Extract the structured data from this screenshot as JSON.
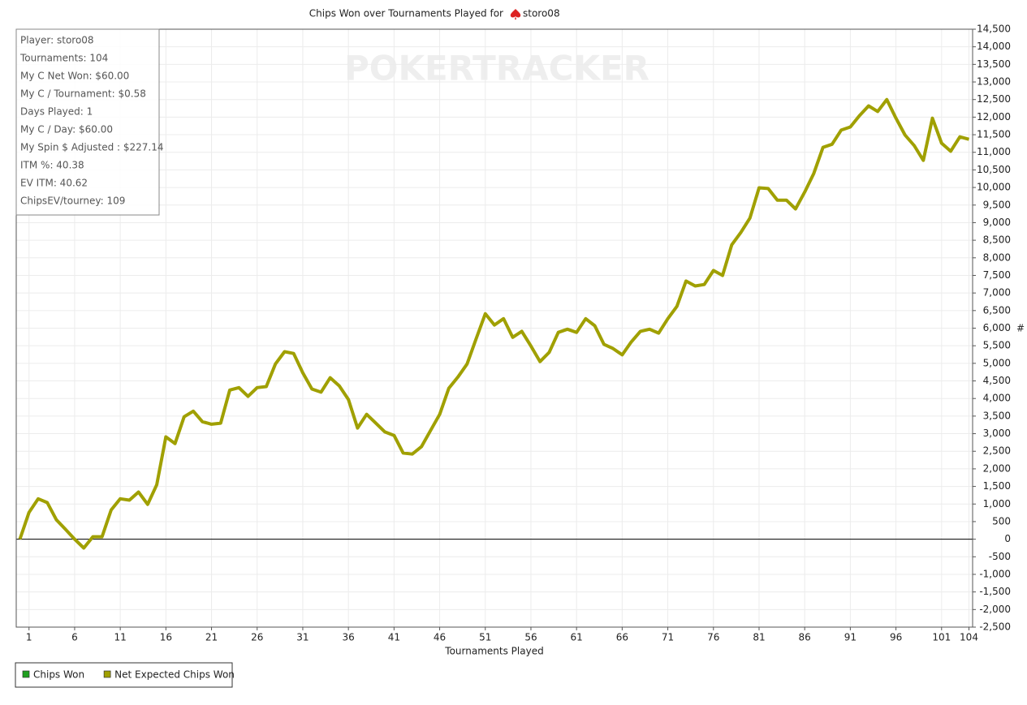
{
  "chart_data": {
    "type": "line",
    "title": "Chips Won over Tournaments Played for",
    "player": "storo08",
    "watermark": "POKERTRACKER",
    "x_label": "Tournaments Played",
    "y_label": "#",
    "stats": [
      "Player: storo08",
      "Tournaments: 104",
      "My C Net Won: $60.00",
      "My C / Tournament: $0.58",
      "Days Played: 1",
      "My C / Day: $60.00",
      "My Spin $ Adjusted : $227.14",
      "ITM %: 40.38",
      "EV ITM: 40.62",
      "ChipsEV/tourney: 109"
    ],
    "x": [
      0,
      1,
      2,
      3,
      4,
      5,
      6,
      7,
      8,
      9,
      10,
      11,
      12,
      13,
      14,
      15,
      16,
      17,
      18,
      19,
      20,
      21,
      22,
      23,
      24,
      25,
      26,
      27,
      28,
      29,
      30,
      31,
      32,
      33,
      34,
      35,
      36,
      37,
      38,
      39,
      40,
      41,
      42,
      43,
      44,
      45,
      46,
      47,
      48,
      49,
      50,
      51,
      52,
      53,
      54,
      55,
      56,
      57,
      58,
      59,
      60,
      61,
      62,
      63,
      64,
      65,
      66,
      67,
      68,
      69,
      70,
      71,
      72,
      73,
      74,
      75,
      76,
      77,
      78,
      79,
      80,
      81,
      82,
      83,
      84,
      85,
      86,
      87,
      88,
      89,
      90,
      91,
      92,
      93,
      94,
      95,
      96,
      97,
      98,
      99,
      100,
      101,
      102,
      103,
      104
    ],
    "series": [
      {
        "name": "Chips Won",
        "color": "#1fa01f"
      },
      {
        "name": "Net Expected Chips Won",
        "color": "#a0a000",
        "values": [
          0,
          760,
          1150,
          1040,
          550,
          280,
          0,
          -250,
          70,
          70,
          830,
          1150,
          1110,
          1340,
          990,
          1550,
          2910,
          2720,
          3480,
          3640,
          3340,
          3270,
          3300,
          4240,
          4310,
          4060,
          4310,
          4340,
          4980,
          5330,
          5280,
          4730,
          4270,
          4180,
          4590,
          4360,
          3970,
          3160,
          3550,
          3300,
          3050,
          2950,
          2450,
          2420,
          2630,
          3090,
          3550,
          4290,
          4610,
          4980,
          5700,
          6410,
          6090,
          6270,
          5740,
          5910,
          5490,
          5050,
          5310,
          5880,
          5970,
          5880,
          6270,
          6070,
          5540,
          5420,
          5240,
          5610,
          5910,
          5970,
          5860,
          6270,
          6620,
          7340,
          7200,
          7240,
          7640,
          7500,
          8370,
          8720,
          9130,
          9990,
          9970,
          9640,
          9640,
          9390,
          9870,
          10400,
          11140,
          11230,
          11630,
          11720,
          12040,
          12320,
          12160,
          12500,
          11970,
          11490,
          11190,
          10770,
          11970,
          11260,
          11030,
          11440,
          11370
        ]
      }
    ],
    "xlim": [
      -0.4,
      104.4
    ],
    "xticks": [
      1,
      6,
      11,
      16,
      21,
      26,
      31,
      36,
      41,
      46,
      51,
      56,
      61,
      66,
      71,
      76,
      81,
      86,
      91,
      96,
      101,
      104
    ],
    "ylim": [
      -2500,
      14500
    ],
    "yticks": [
      {
        "value": -2500,
        "label": "-2,500"
      },
      {
        "value": -2000,
        "label": "-2,000"
      },
      {
        "value": -1500,
        "label": "-1,500"
      },
      {
        "value": -1000,
        "label": "-1,000"
      },
      -500,
      0,
      500,
      {
        "value": 1000,
        "label": "1,000"
      },
      {
        "value": 1500,
        "label": "1,500"
      },
      {
        "value": 2000,
        "label": "2,000"
      },
      {
        "value": 2500,
        "label": "2,500"
      },
      {
        "value": 3000,
        "label": "3,000"
      },
      {
        "value": 3500,
        "label": "3,500"
      },
      {
        "value": 4000,
        "label": "4,000"
      },
      {
        "value": 4500,
        "label": "4,500"
      },
      {
        "value": 5000,
        "label": "5,000"
      },
      {
        "value": 5500,
        "label": "5,500"
      },
      {
        "value": 6000,
        "label": "6,000"
      },
      {
        "value": 6500,
        "label": "6,500"
      },
      {
        "value": 7000,
        "label": "7,000"
      },
      {
        "value": 7500,
        "label": "7,500"
      },
      {
        "value": 8000,
        "label": "8,000"
      },
      {
        "value": 8500,
        "label": "8,500"
      },
      {
        "value": 9000,
        "label": "9,000"
      },
      {
        "value": 9500,
        "label": "9,500"
      },
      {
        "value": 10000,
        "label": "10,000"
      },
      {
        "value": 10500,
        "label": "10,500"
      },
      {
        "value": 11000,
        "label": "11,000"
      },
      {
        "value": 11500,
        "label": "11,500"
      },
      {
        "value": 12000,
        "label": "12,000"
      },
      {
        "value": 12500,
        "label": "12,500"
      },
      {
        "value": 13000,
        "label": "13,000"
      },
      {
        "value": 13500,
        "label": "13,500"
      },
      {
        "value": 14000,
        "label": "14,000"
      },
      {
        "value": 14500,
        "label": "14,500"
      }
    ],
    "grid": true
  }
}
